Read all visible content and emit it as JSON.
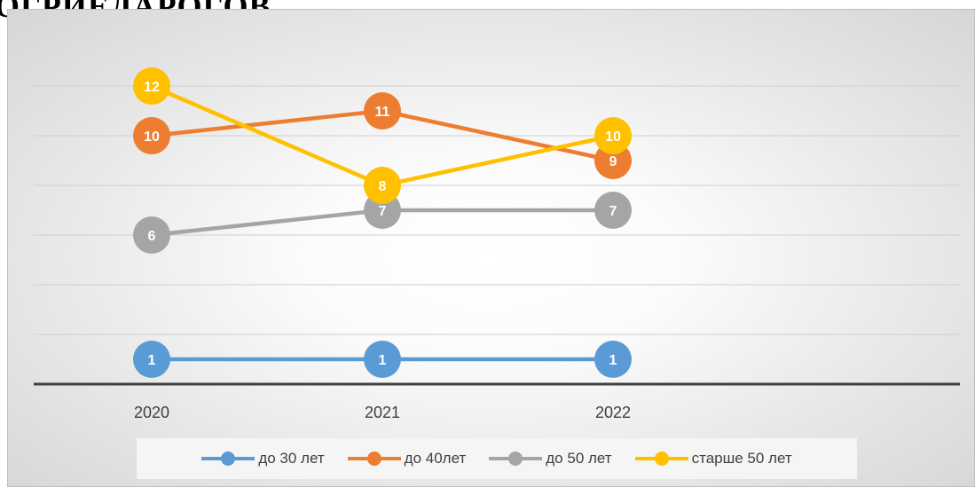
{
  "title": "ОГРИЕДАРОГОВ",
  "chart_data": {
    "type": "line",
    "categories": [
      "2020",
      "2021",
      "2022"
    ],
    "ylim": [
      0,
      13
    ],
    "grid": true,
    "legend_position": "bottom",
    "data_labels": true,
    "series": [
      {
        "name": "до 30 лет",
        "color": "#5b9bd5",
        "values": [
          1,
          1,
          1
        ]
      },
      {
        "name": "до 40лет",
        "color": "#ed7d31",
        "values": [
          10,
          11,
          9
        ]
      },
      {
        "name": "до 50 лет",
        "color": "#a5a5a5",
        "values": [
          6,
          7,
          7
        ]
      },
      {
        "name": "старше 50 лет",
        "color": "#ffc000",
        "values": [
          12,
          8,
          10
        ]
      }
    ]
  }
}
